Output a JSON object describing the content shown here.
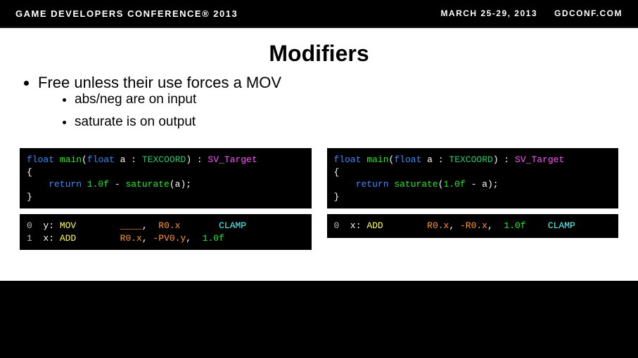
{
  "header": {
    "left": "GAME DEVELOPERS CONFERENCE® 2013",
    "date": "MARCH 25-29, 2013",
    "site": "GDCONF.COM"
  },
  "title": "Modifiers",
  "bullet1": "Free unless their use forces a MOV",
  "bullet2a": "abs/neg are on input",
  "bullet2b": "saturate is on output",
  "left_code": {
    "sig_pre": "float",
    "fn": "main",
    "paren_open": "(",
    "param_type": "float",
    "param_name": " a ",
    "colon": ": ",
    "sem": "TEXCOORD",
    "paren_close": ") ",
    "colon2": ": ",
    "target": "SV_Target",
    "brace_open": "{",
    "ret_kw": "    return ",
    "lit": "1.0f",
    "minus": " - ",
    "sat": "saturate",
    "sat_arg": "(a);",
    "brace_close": "}"
  },
  "right_code": {
    "sig_pre": "float",
    "fn": "main",
    "paren_open": "(",
    "param_type": "float",
    "param_name": " a ",
    "colon": ": ",
    "sem": "TEXCOORD",
    "paren_close": ") ",
    "colon2": ": ",
    "target": "SV_Target",
    "brace_open": "{",
    "ret_kw": "    return ",
    "sat": "saturate",
    "sat_open": "(",
    "lit": "1.0f",
    "minus": " - a);",
    "brace_close": "}"
  },
  "left_asm": {
    "l0_idx": "0  ",
    "l0_r": "y: ",
    "l0_op": "MOV",
    "l0_sp": "        ",
    "l0_a1": "____",
    "l0_c1": ",  ",
    "l0_a2": "R0.x",
    "l0_sp2": "       ",
    "l0_clamp": "CLAMP",
    "l1_idx": "1  ",
    "l1_r": "x: ",
    "l1_op": "ADD",
    "l1_sp": "        ",
    "l1_a1": "R0.x",
    "l1_c1": ", ",
    "l1_a2": "-PV0.y",
    "l1_c2": ",  ",
    "l1_a3": "1.0f"
  },
  "right_asm": {
    "l0_idx": "0  ",
    "l0_r": "x: ",
    "l0_op": "ADD",
    "l0_sp": "        ",
    "l0_a1": "R0.x",
    "l0_c1": ", ",
    "l0_a2": "-R0.x",
    "l0_c2": ",  ",
    "l0_a3": "1.0f",
    "l0_sp2": "    ",
    "l0_clamp": "CLAMP"
  }
}
